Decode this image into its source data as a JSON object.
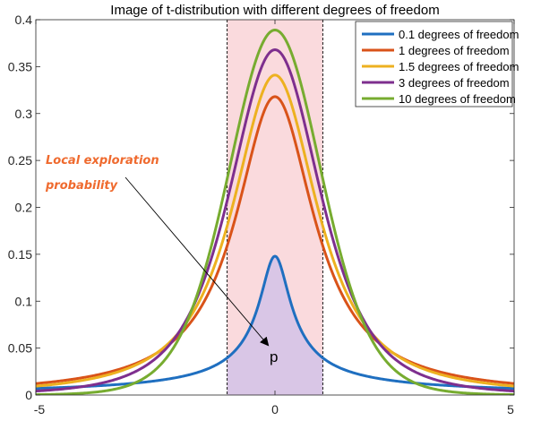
{
  "chart_data": {
    "type": "line",
    "title": "Image of t-distribution with different degrees of freedom",
    "xlabel": "",
    "ylabel": "",
    "xlim": [
      -5,
      5
    ],
    "ylim": [
      0,
      0.4
    ],
    "xticks": [
      -5,
      0,
      5
    ],
    "yticks": [
      0,
      0.05,
      0.1,
      0.15,
      0.2,
      0.25,
      0.3,
      0.35,
      0.4
    ],
    "ytick_labels": [
      "0",
      "0.05",
      "0.1",
      "0.15",
      "0.2",
      "0.25",
      "0.3",
      "0.35",
      "0.4"
    ],
    "xtick_labels": [
      "-5",
      "0",
      "5"
    ],
    "grid": false,
    "legend_position": "top-right",
    "highlight_region": {
      "x": [
        -1,
        1
      ],
      "color": "#fadadd"
    },
    "shaded_area": {
      "series": "0.1 degrees of freedom",
      "x": [
        -1,
        1
      ],
      "color": "#d9c6e6"
    },
    "series": [
      {
        "name": "0.1 degrees of freedom",
        "df": 0.1,
        "color": "#1f6fc0",
        "peak": 0.148,
        "x": [
          -5,
          -4,
          -3,
          -2,
          -1,
          0,
          1,
          2,
          3,
          4,
          5
        ],
        "values": [
          0.008,
          0.01,
          0.013,
          0.02,
          0.042,
          0.148,
          0.042,
          0.02,
          0.013,
          0.01,
          0.008
        ]
      },
      {
        "name": "1 degrees of freedom",
        "df": 1,
        "color": "#d95319",
        "peak": 0.318,
        "x": [
          -5,
          -4,
          -3,
          -2,
          -1,
          0,
          1,
          2,
          3,
          4,
          5
        ],
        "values": [
          0.012,
          0.019,
          0.032,
          0.064,
          0.159,
          0.318,
          0.159,
          0.064,
          0.032,
          0.019,
          0.012
        ]
      },
      {
        "name": "1.5 degrees of freedom",
        "df": 1.5,
        "color": "#edb120",
        "peak": 0.341,
        "x": [
          -5,
          -4,
          -3,
          -2,
          -1,
          0,
          1,
          2,
          3,
          4,
          5
        ],
        "values": [
          0.011,
          0.017,
          0.031,
          0.068,
          0.183,
          0.341,
          0.183,
          0.068,
          0.031,
          0.017,
          0.011
        ]
      },
      {
        "name": "3 degrees of freedom",
        "df": 3,
        "color": "#7e2f8e",
        "peak": 0.368,
        "x": [
          -5,
          -4,
          -3,
          -2,
          -1,
          0,
          1,
          2,
          3,
          4,
          5
        ],
        "values": [
          0.004,
          0.009,
          0.023,
          0.068,
          0.207,
          0.368,
          0.207,
          0.068,
          0.023,
          0.009,
          0.004
        ]
      },
      {
        "name": "10 degrees of freedom",
        "df": 10,
        "color": "#77ac30",
        "peak": 0.389,
        "x": [
          -5,
          -4,
          -3,
          -2,
          -1,
          0,
          1,
          2,
          3,
          4,
          5
        ],
        "values": [
          0.0,
          0.002,
          0.011,
          0.061,
          0.23,
          0.389,
          0.23,
          0.061,
          0.011,
          0.002,
          0.0
        ]
      }
    ],
    "annotations": [
      {
        "text_lines": [
          "Local exploration",
          "probability"
        ],
        "color": "#ef6a2e"
      },
      {
        "text": "p",
        "arrow_to": [
          -0.1,
          0.036
        ]
      }
    ]
  }
}
